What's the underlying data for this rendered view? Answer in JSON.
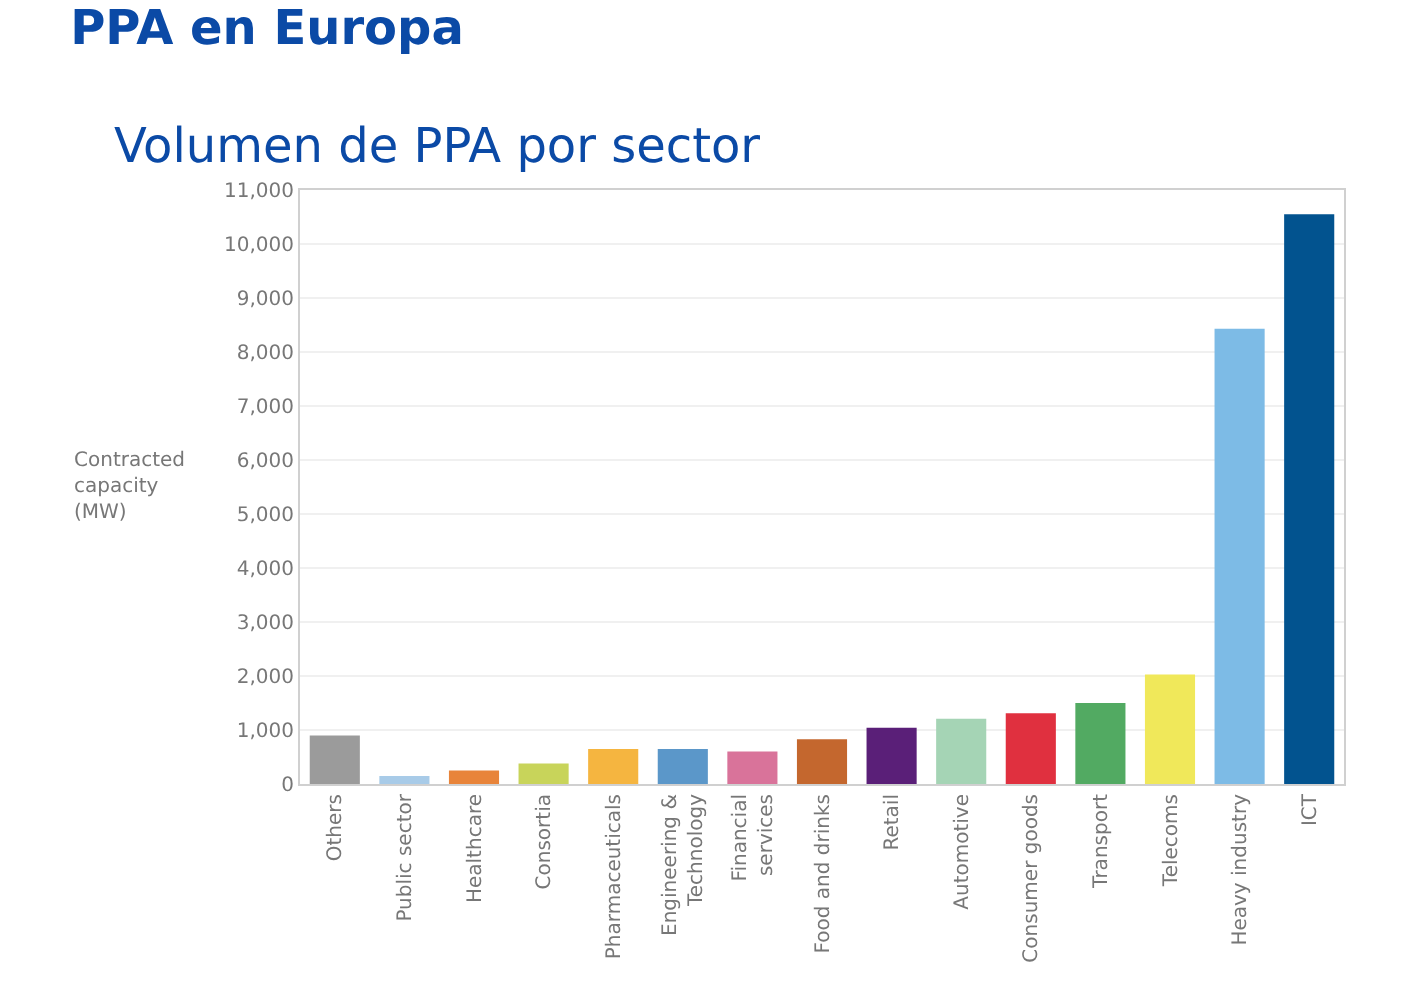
{
  "chart_data": {
    "type": "bar",
    "title": "PPA en Europa",
    "subtitle": "Volumen de PPA por sector",
    "ylabel": "Contracted capacity (MW)",
    "categories": [
      "Others",
      "Public sector",
      "Healthcare",
      "Consortia",
      "Pharmaceuticals",
      "Engineering & Technology",
      "Financial services",
      "Food and drinks",
      "Retail",
      "Automotive",
      "Consumer goods",
      "Transport",
      "Telecoms",
      "Heavy industry",
      "ICT"
    ],
    "values": [
      900,
      150,
      250,
      380,
      650,
      650,
      600,
      830,
      1040,
      1210,
      1310,
      1500,
      2030,
      8430,
      10550
    ],
    "colors": [
      "#9b9b9b",
      "#a8cbe8",
      "#e8843a",
      "#c8d45a",
      "#f5b540",
      "#5b97c9",
      "#d9739a",
      "#c4672e",
      "#5a1f78",
      "#a5d4b5",
      "#e0303f",
      "#52aa62",
      "#f0e85a",
      "#7dbbe6",
      "#02538f"
    ],
    "ylim": [
      0,
      11000
    ],
    "yticks": [
      {
        "value": 0,
        "label": "0"
      },
      {
        "value": 1000,
        "label": "1,000"
      },
      {
        "value": 2000,
        "label": "2,000"
      },
      {
        "value": 3000,
        "label": "3,000"
      },
      {
        "value": 4000,
        "label": "4,000"
      },
      {
        "value": 5000,
        "label": "5,000"
      },
      {
        "value": 6000,
        "label": "6,000"
      },
      {
        "value": 7000,
        "label": "7,000"
      },
      {
        "value": 8000,
        "label": "8,000"
      },
      {
        "value": 9000,
        "label": "9,000"
      },
      {
        "value": 10000,
        "label": "10,000"
      },
      {
        "value": 11000,
        "label": "11,000"
      }
    ],
    "grid": "y"
  }
}
